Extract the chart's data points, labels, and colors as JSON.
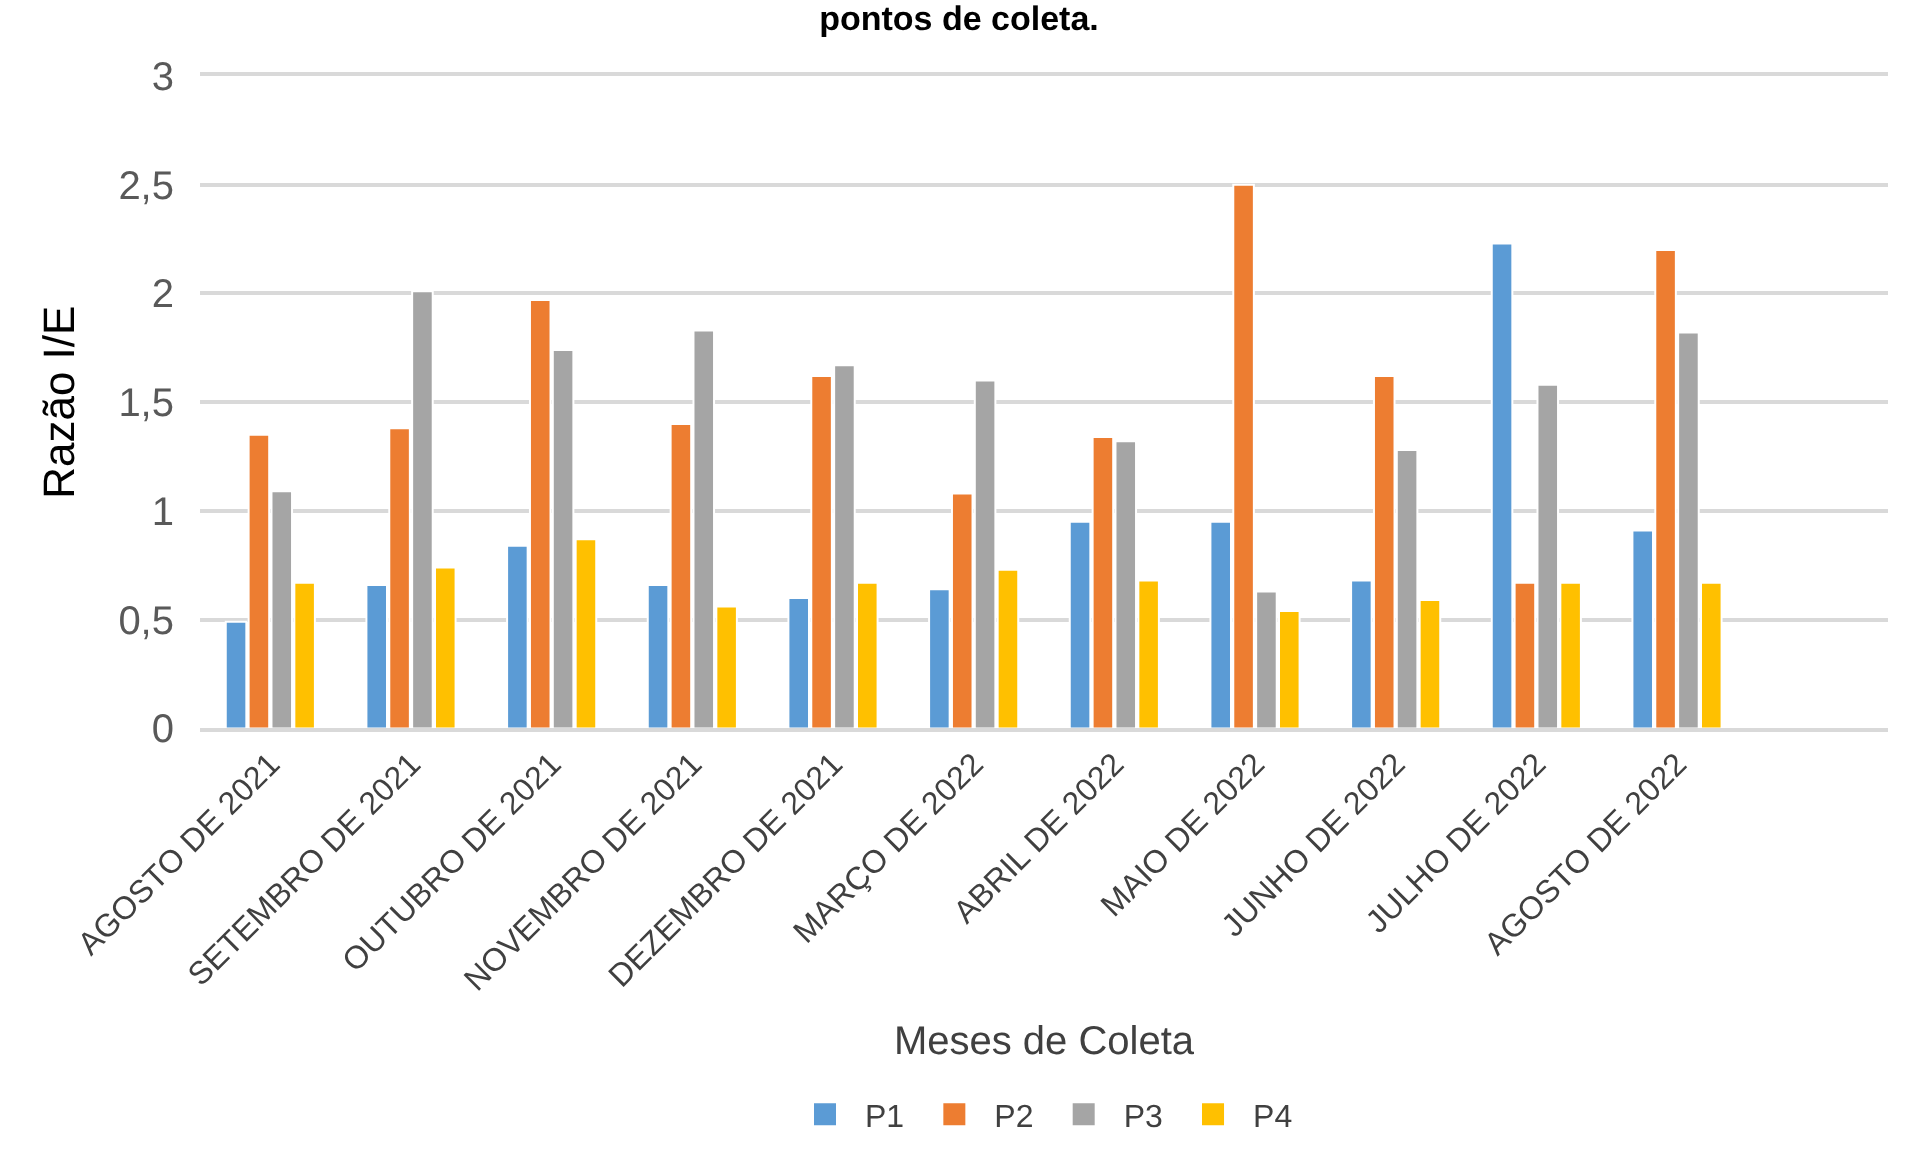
{
  "chart_data": {
    "type": "bar",
    "title": "pontos de coleta.",
    "xlabel": "Meses de Coleta",
    "ylabel": "Razão I/E",
    "categories": [
      "AGOSTO DE 2021",
      "SETEMBRO DE 2021",
      "OUTUBRO DE 2021",
      "NOVEMBRO DE 2021",
      "DEZEMBRO DE 2021",
      "MARÇO DE 2022",
      "ABRIL DE 2022",
      "MAIO DE 2022",
      "JUNHO DE 2022",
      "JULHO DE 2022",
      "AGOSTO DE 2022",
      null
    ],
    "series": [
      {
        "name": "P1",
        "color": "#5b9bd5",
        "values": [
          0.49,
          0.66,
          0.84,
          0.66,
          0.6,
          0.64,
          0.95,
          0.95,
          0.68,
          2.23,
          0.91,
          null
        ]
      },
      {
        "name": "P2",
        "color": "#ed7d31",
        "values": [
          1.35,
          1.38,
          1.97,
          1.4,
          1.62,
          1.08,
          1.34,
          2.5,
          1.62,
          0.67,
          2.2,
          null
        ]
      },
      {
        "name": "P3",
        "color": "#a5a5a5",
        "values": [
          1.09,
          2.01,
          1.74,
          1.83,
          1.67,
          1.6,
          1.32,
          0.63,
          1.28,
          1.58,
          1.82,
          null
        ]
      },
      {
        "name": "P4",
        "color": "#ffc000",
        "values": [
          0.67,
          0.74,
          0.87,
          0.56,
          0.67,
          0.73,
          0.68,
          0.54,
          0.59,
          0.67,
          0.67,
          null
        ]
      }
    ],
    "ylim": [
      0,
      3
    ],
    "yticks": [
      0,
      {
        "value": 0.5,
        "label": "0,5"
      },
      1,
      {
        "value": 1.5,
        "label": "1,5"
      },
      2,
      {
        "value": 2.5,
        "label": "2,5"
      },
      3
    ],
    "grid": "y",
    "legend": "bottom"
  }
}
